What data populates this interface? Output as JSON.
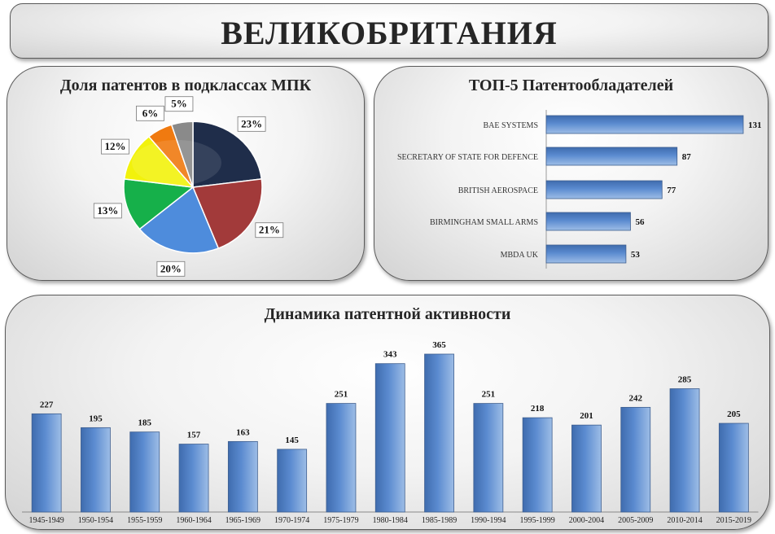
{
  "page": {
    "title": "ВЕЛИКОБРИТАНИЯ"
  },
  "colors": {
    "bar": "#5b8bd0",
    "pie": [
      "#1f2d4a",
      "#a23a3a",
      "#4e8cdc",
      "#16b04a",
      "#f2f20c",
      "#f07a10",
      "#8a8a8a"
    ]
  },
  "chart_data": [
    {
      "type": "pie",
      "title": "Доля патентов в подклассах МПК",
      "slices": [
        {
          "label": "23%",
          "value": 23
        },
        {
          "label": "21%",
          "value": 21
        },
        {
          "label": "20%",
          "value": 20
        },
        {
          "label": "13%",
          "value": 13
        },
        {
          "label": "12%",
          "value": 12
        },
        {
          "label": "6%",
          "value": 6
        },
        {
          "label": "5%",
          "value": 5
        }
      ]
    },
    {
      "type": "bar",
      "orientation": "horizontal",
      "title": "ТОП-5 Патентообладателей",
      "categories": [
        "BAE SYSTEMS",
        "SECRETARY OF STATE FOR DEFENCE",
        "BRITISH AEROSPACE",
        "BIRMINGHAM SMALL ARMS",
        "MBDA UK"
      ],
      "values": [
        131,
        87,
        77,
        56,
        53
      ],
      "xlim": [
        0,
        131
      ]
    },
    {
      "type": "bar",
      "title": "Динамика патентной активности",
      "categories": [
        "1945-1949",
        "1950-1954",
        "1955-1959",
        "1960-1964",
        "1965-1969",
        "1970-1974",
        "1975-1979",
        "1980-1984",
        "1985-1989",
        "1990-1994",
        "1995-1999",
        "2000-2004",
        "2005-2009",
        "2010-2014",
        "2015-2019"
      ],
      "values": [
        227,
        195,
        185,
        157,
        163,
        145,
        251,
        343,
        365,
        251,
        218,
        201,
        242,
        285,
        205
      ],
      "ylim": [
        0,
        365
      ]
    }
  ]
}
